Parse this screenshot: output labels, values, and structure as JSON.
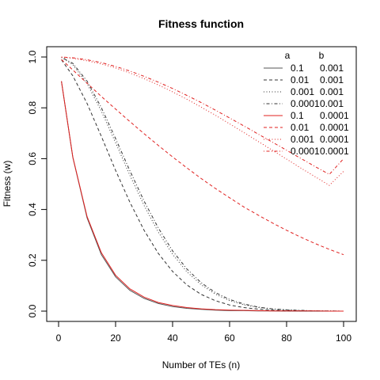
{
  "chart_data": {
    "type": "line",
    "title": "Fitness function",
    "xlabel": "Number of TEs (n)",
    "ylabel": "Fitness (w)",
    "xlim": [
      1,
      100
    ],
    "ylim": [
      0,
      1
    ],
    "xticks": [
      "0",
      "20",
      "40",
      "60",
      "80",
      "100"
    ],
    "yticks": [
      "0.0",
      "0.2",
      "0.4",
      "0.6",
      "0.8",
      "1.0"
    ],
    "legend_position": "top-right",
    "legend_headers": [
      "a",
      "b"
    ],
    "x": [
      1,
      5,
      10,
      15,
      20,
      25,
      30,
      35,
      40,
      45,
      50,
      55,
      60,
      65,
      70,
      75,
      80,
      85,
      90,
      95,
      100
    ],
    "series": [
      {
        "a": "0.1",
        "b": "0.001",
        "color": "#555555",
        "dash": "solid",
        "values": [
          0.904,
          0.605,
          0.367,
          0.222,
          0.135,
          0.082,
          0.05,
          0.03,
          0.018,
          0.011,
          0.007,
          0.004,
          0.002,
          0.002,
          0.001,
          0.001,
          0.0,
          0.0,
          0.0,
          0.0,
          0.0
        ]
      },
      {
        "a": "0.01",
        "b": "0.001",
        "color": "#333333",
        "dash": "dashed",
        "values": [
          0.989,
          0.926,
          0.817,
          0.688,
          0.554,
          0.429,
          0.318,
          0.227,
          0.156,
          0.103,
          0.066,
          0.041,
          0.024,
          0.014,
          0.008,
          0.004,
          0.002,
          0.001,
          0.001,
          0.0,
          0.0
        ]
      },
      {
        "a": "0.001",
        "b": "0.001",
        "color": "#333333",
        "dash": "dotted",
        "values": [
          0.998,
          0.97,
          0.895,
          0.787,
          0.663,
          0.535,
          0.416,
          0.311,
          0.224,
          0.155,
          0.104,
          0.067,
          0.041,
          0.025,
          0.015,
          0.008,
          0.005,
          0.002,
          0.001,
          0.001,
          0.0
        ]
      },
      {
        "a": "0.0001",
        "b": "0.001",
        "color": "#333333",
        "dash": "dotdash",
        "values": [
          0.999,
          0.975,
          0.905,
          0.801,
          0.679,
          0.553,
          0.433,
          0.327,
          0.237,
          0.166,
          0.112,
          0.073,
          0.046,
          0.028,
          0.016,
          0.009,
          0.005,
          0.003,
          0.001,
          0.001,
          0.0
        ]
      },
      {
        "a": "0.1",
        "b": "0.0001",
        "color": "#e0201f",
        "dash": "solid",
        "values": [
          0.905,
          0.606,
          0.372,
          0.23,
          0.141,
          0.088,
          0.055,
          0.034,
          0.022,
          0.014,
          0.009,
          0.006,
          0.004,
          0.003,
          0.002,
          0.001,
          0.001,
          0.001,
          0.001,
          0.0,
          0.0
        ]
      },
      {
        "a": "0.01",
        "b": "0.0001",
        "color": "#e0201f",
        "dash": "dashed",
        "values": [
          0.99,
          0.949,
          0.897,
          0.845,
          0.795,
          0.746,
          0.698,
          0.652,
          0.607,
          0.564,
          0.522,
          0.483,
          0.446,
          0.41,
          0.378,
          0.347,
          0.318,
          0.291,
          0.266,
          0.243,
          0.222
        ]
      },
      {
        "a": "0.001",
        "b": "0.0001",
        "color": "#e0201f",
        "dash": "dotted",
        "values": [
          0.999,
          0.995,
          0.985,
          0.973,
          0.957,
          0.937,
          0.915,
          0.89,
          0.863,
          0.834,
          0.803,
          0.771,
          0.737,
          0.703,
          0.668,
          0.633,
          0.598,
          0.563,
          0.529,
          0.495,
          0.55
        ]
      },
      {
        "a": "0.0001",
        "b": "0.0001",
        "color": "#e0201f",
        "dash": "dotdash",
        "values": [
          1.0,
          0.997,
          0.989,
          0.978,
          0.963,
          0.945,
          0.924,
          0.901,
          0.876,
          0.849,
          0.821,
          0.791,
          0.76,
          0.729,
          0.697,
          0.665,
          0.633,
          0.601,
          0.569,
          0.538,
          0.6
        ]
      }
    ]
  }
}
